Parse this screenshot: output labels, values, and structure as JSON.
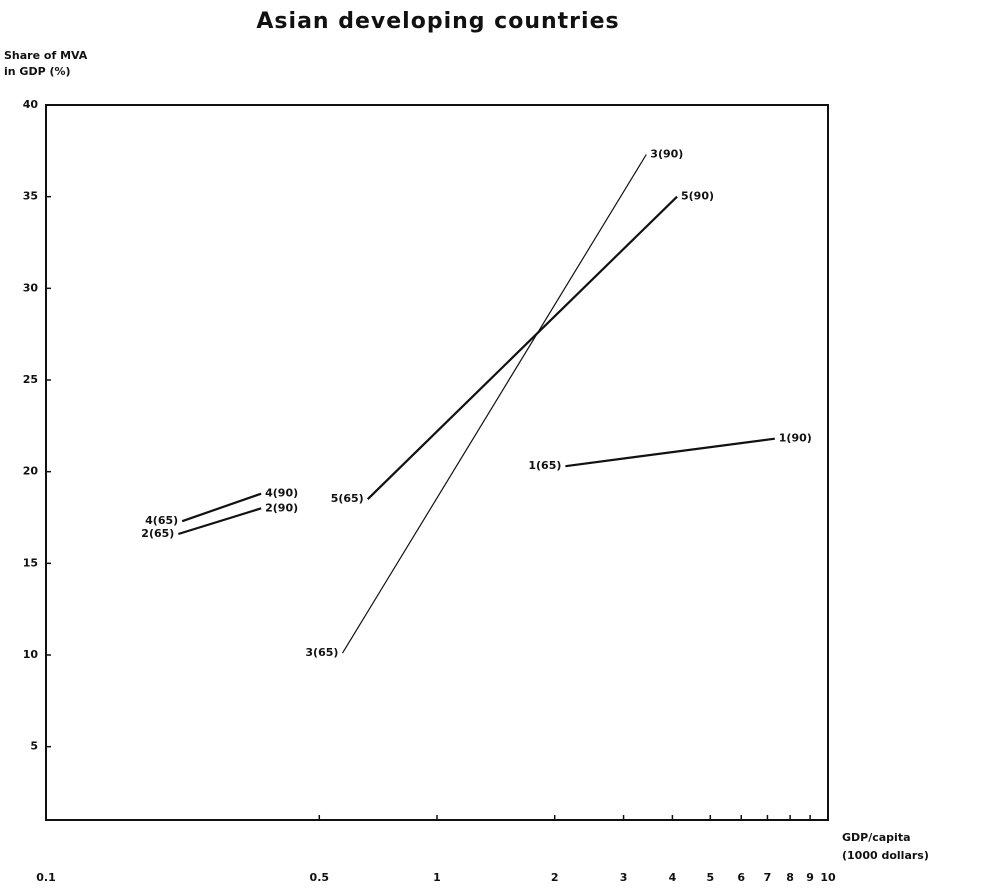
{
  "chart_data": {
    "type": "line",
    "title": "Asian developing countries",
    "y_label": [
      "Share of MVA",
      "in GDP (%)"
    ],
    "x_label": [
      "GDP/capita",
      "(1000 dollars)"
    ],
    "log_x": true,
    "xlim": [
      0.1,
      10
    ],
    "ylim": [
      1,
      40
    ],
    "xticks": [
      0.1,
      0.5,
      1,
      2,
      3,
      4,
      5,
      6,
      7,
      8,
      9,
      10
    ],
    "yticks": [
      5,
      10,
      15,
      20,
      25,
      30,
      35,
      40
    ],
    "color": "#111111",
    "series": [
      {
        "x": [
          2.13,
          7.31
        ],
        "values": [
          20.3,
          21.8
        ],
        "labels": [
          "1(65)",
          "1(90)"
        ],
        "width": 2.2
      },
      {
        "x": [
          0.218,
          0.355
        ],
        "values": [
          16.6,
          18.0
        ],
        "labels": [
          "2(65)",
          "2(90)"
        ],
        "width": 2.2
      },
      {
        "x": [
          0.573,
          3.43
        ],
        "values": [
          10.1,
          37.3
        ],
        "labels": [
          "3(65)",
          "3(90)"
        ],
        "width": 1.2
      },
      {
        "x": [
          0.223,
          0.355
        ],
        "values": [
          17.3,
          18.8
        ],
        "labels": [
          "4(65)",
          "4(90)"
        ],
        "width": 2.2
      },
      {
        "x": [
          0.665,
          4.11
        ],
        "values": [
          18.5,
          35.0
        ],
        "labels": [
          "5(65)",
          "5(90)"
        ],
        "width": 2.2
      }
    ]
  }
}
